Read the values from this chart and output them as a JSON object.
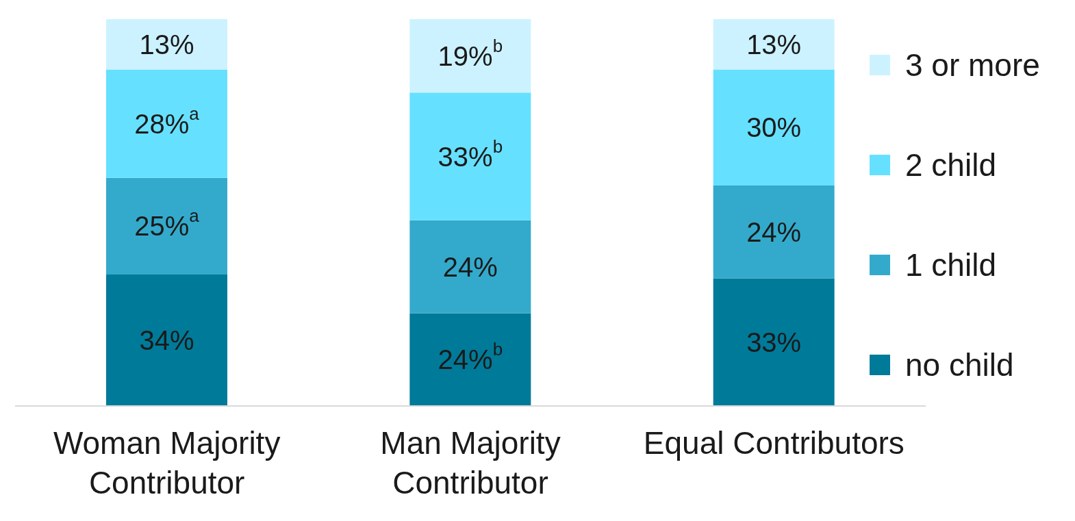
{
  "chart_data": {
    "type": "bar",
    "stacked": true,
    "categories": [
      "Woman Majority Contributor",
      "Man Majority Contributor",
      "Equal Contributors"
    ],
    "series": [
      {
        "name": "no child",
        "color": "#007a99",
        "values": [
          34,
          24,
          33
        ],
        "value_labels": [
          "34%",
          "24%$^{b}$",
          "33%"
        ]
      },
      {
        "name": "1 child",
        "color": "#33aacc",
        "values": [
          25,
          24,
          24
        ],
        "value_labels": [
          "25%$^{a}$",
          "24%",
          "24%"
        ]
      },
      {
        "name": "2 child",
        "color": "#66e0ff",
        "values": [
          28,
          33,
          30
        ],
        "value_labels": [
          "28%$^{a}$",
          "33%$^{b}$",
          "30%"
        ]
      },
      {
        "name": "3 or more",
        "color": "#ccf2ff",
        "values": [
          13,
          19,
          13
        ],
        "value_labels": [
          "13%",
          "19%$^{b}$",
          "13%"
        ]
      }
    ],
    "legend": "right"
  }
}
